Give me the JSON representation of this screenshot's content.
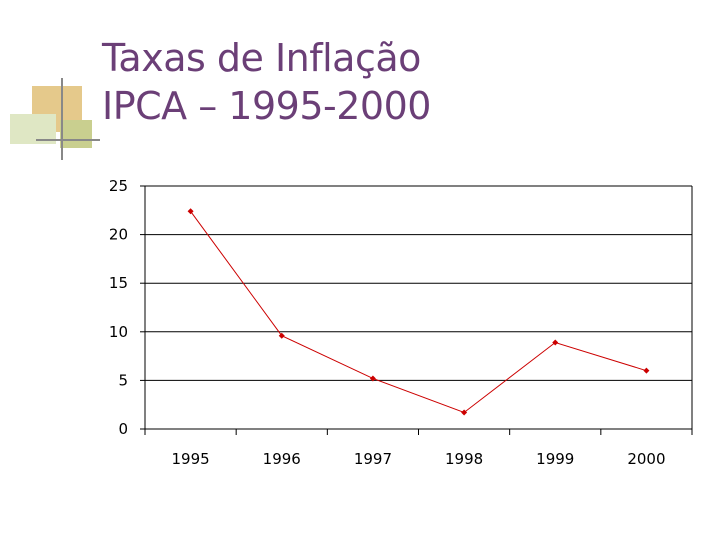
{
  "slide": {
    "title_line1": "Taxas de Inflação",
    "title_line2": "IPCA – 1995-2000"
  },
  "chart_data": {
    "type": "line",
    "title": "",
    "xlabel": "",
    "ylabel": "",
    "categories": [
      "1995",
      "1996",
      "1997",
      "1998",
      "1999",
      "2000"
    ],
    "series": [
      {
        "name": "IPCA",
        "values": [
          22.4,
          9.6,
          5.2,
          1.7,
          8.9,
          6.0
        ]
      }
    ],
    "ylim": [
      0,
      25
    ],
    "yticks": [
      "0",
      "5",
      "10",
      "15",
      "20",
      "25"
    ],
    "grid": true,
    "line_color": "#cc0000"
  }
}
